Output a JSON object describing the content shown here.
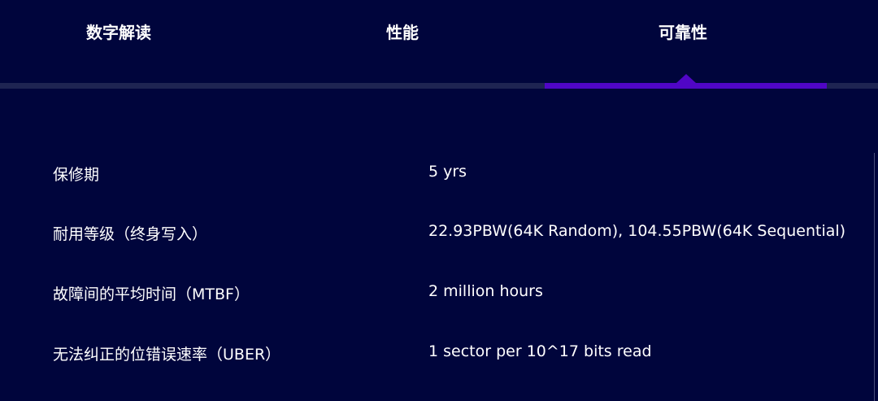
{
  "tabs": [
    {
      "label": "数字解读"
    },
    {
      "label": "性能"
    },
    {
      "label": "可靠性",
      "active": true
    }
  ],
  "colors": {
    "background": "#00053c",
    "accent": "#5006c6",
    "track": "#1e2452"
  },
  "specs": [
    {
      "label": "保修期",
      "value": "5 yrs"
    },
    {
      "label": "耐用等级（终身写入）",
      "value": "22.93PBW(64K Random), 104.55PBW(64K Sequential)"
    },
    {
      "label": "故障间的平均时间（MTBF）",
      "value": "2 million hours"
    },
    {
      "label": "无法纠正的位错误速率（UBER）",
      "value": "1 sector per 10^17 bits read"
    }
  ]
}
